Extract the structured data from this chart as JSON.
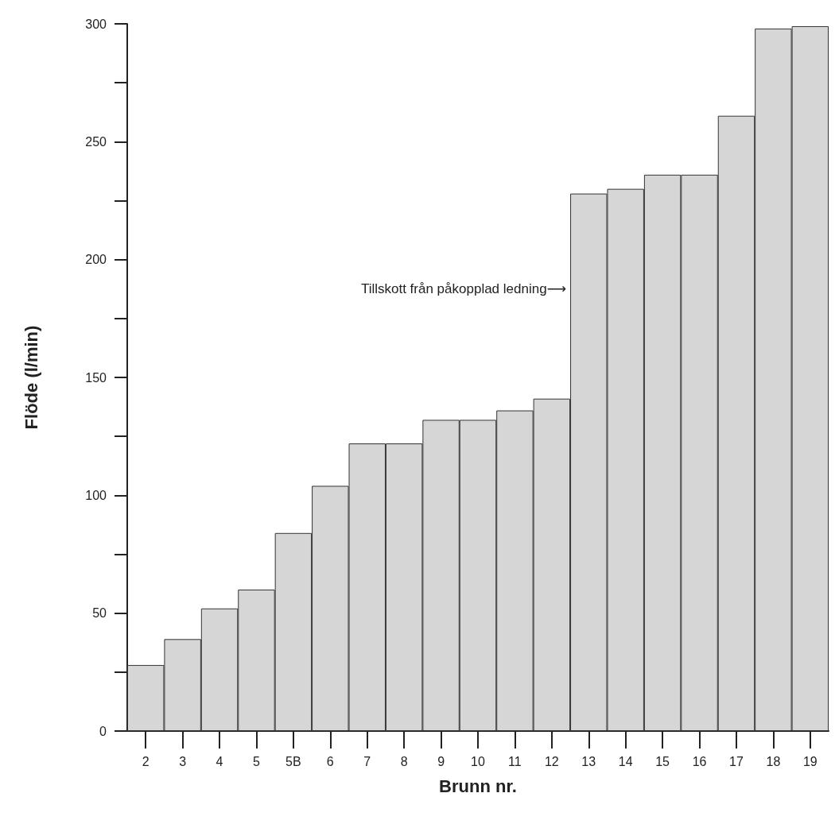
{
  "chart_data": {
    "type": "bar",
    "xlabel": "Brunn nr.",
    "ylabel": "Flöde (l/min)",
    "categories": [
      "2",
      "3",
      "4",
      "5",
      "5B",
      "6",
      "7",
      "8",
      "9",
      "10",
      "11",
      "12",
      "13",
      "14",
      "15",
      "16",
      "17",
      "18",
      "19"
    ],
    "values": [
      28,
      39,
      52,
      60,
      84,
      104,
      122,
      122,
      132,
      132,
      136,
      141,
      228,
      230,
      236,
      236,
      261,
      298,
      299
    ],
    "color": "#d6d6d6",
    "ylim": [
      0,
      300
    ],
    "yticks": [
      0,
      {
        "value": 25,
        "label": null
      },
      50,
      {
        "value": 75,
        "label": null
      },
      100,
      {
        "value": 125,
        "label": null
      },
      150,
      {
        "value": 175,
        "label": null
      },
      200,
      {
        "value": 225,
        "label": null
      },
      250,
      {
        "value": 275,
        "label": null
      },
      300
    ],
    "annotations": [
      "Tillskott från påkopplad ledning⟶"
    ],
    "grid": false
  }
}
